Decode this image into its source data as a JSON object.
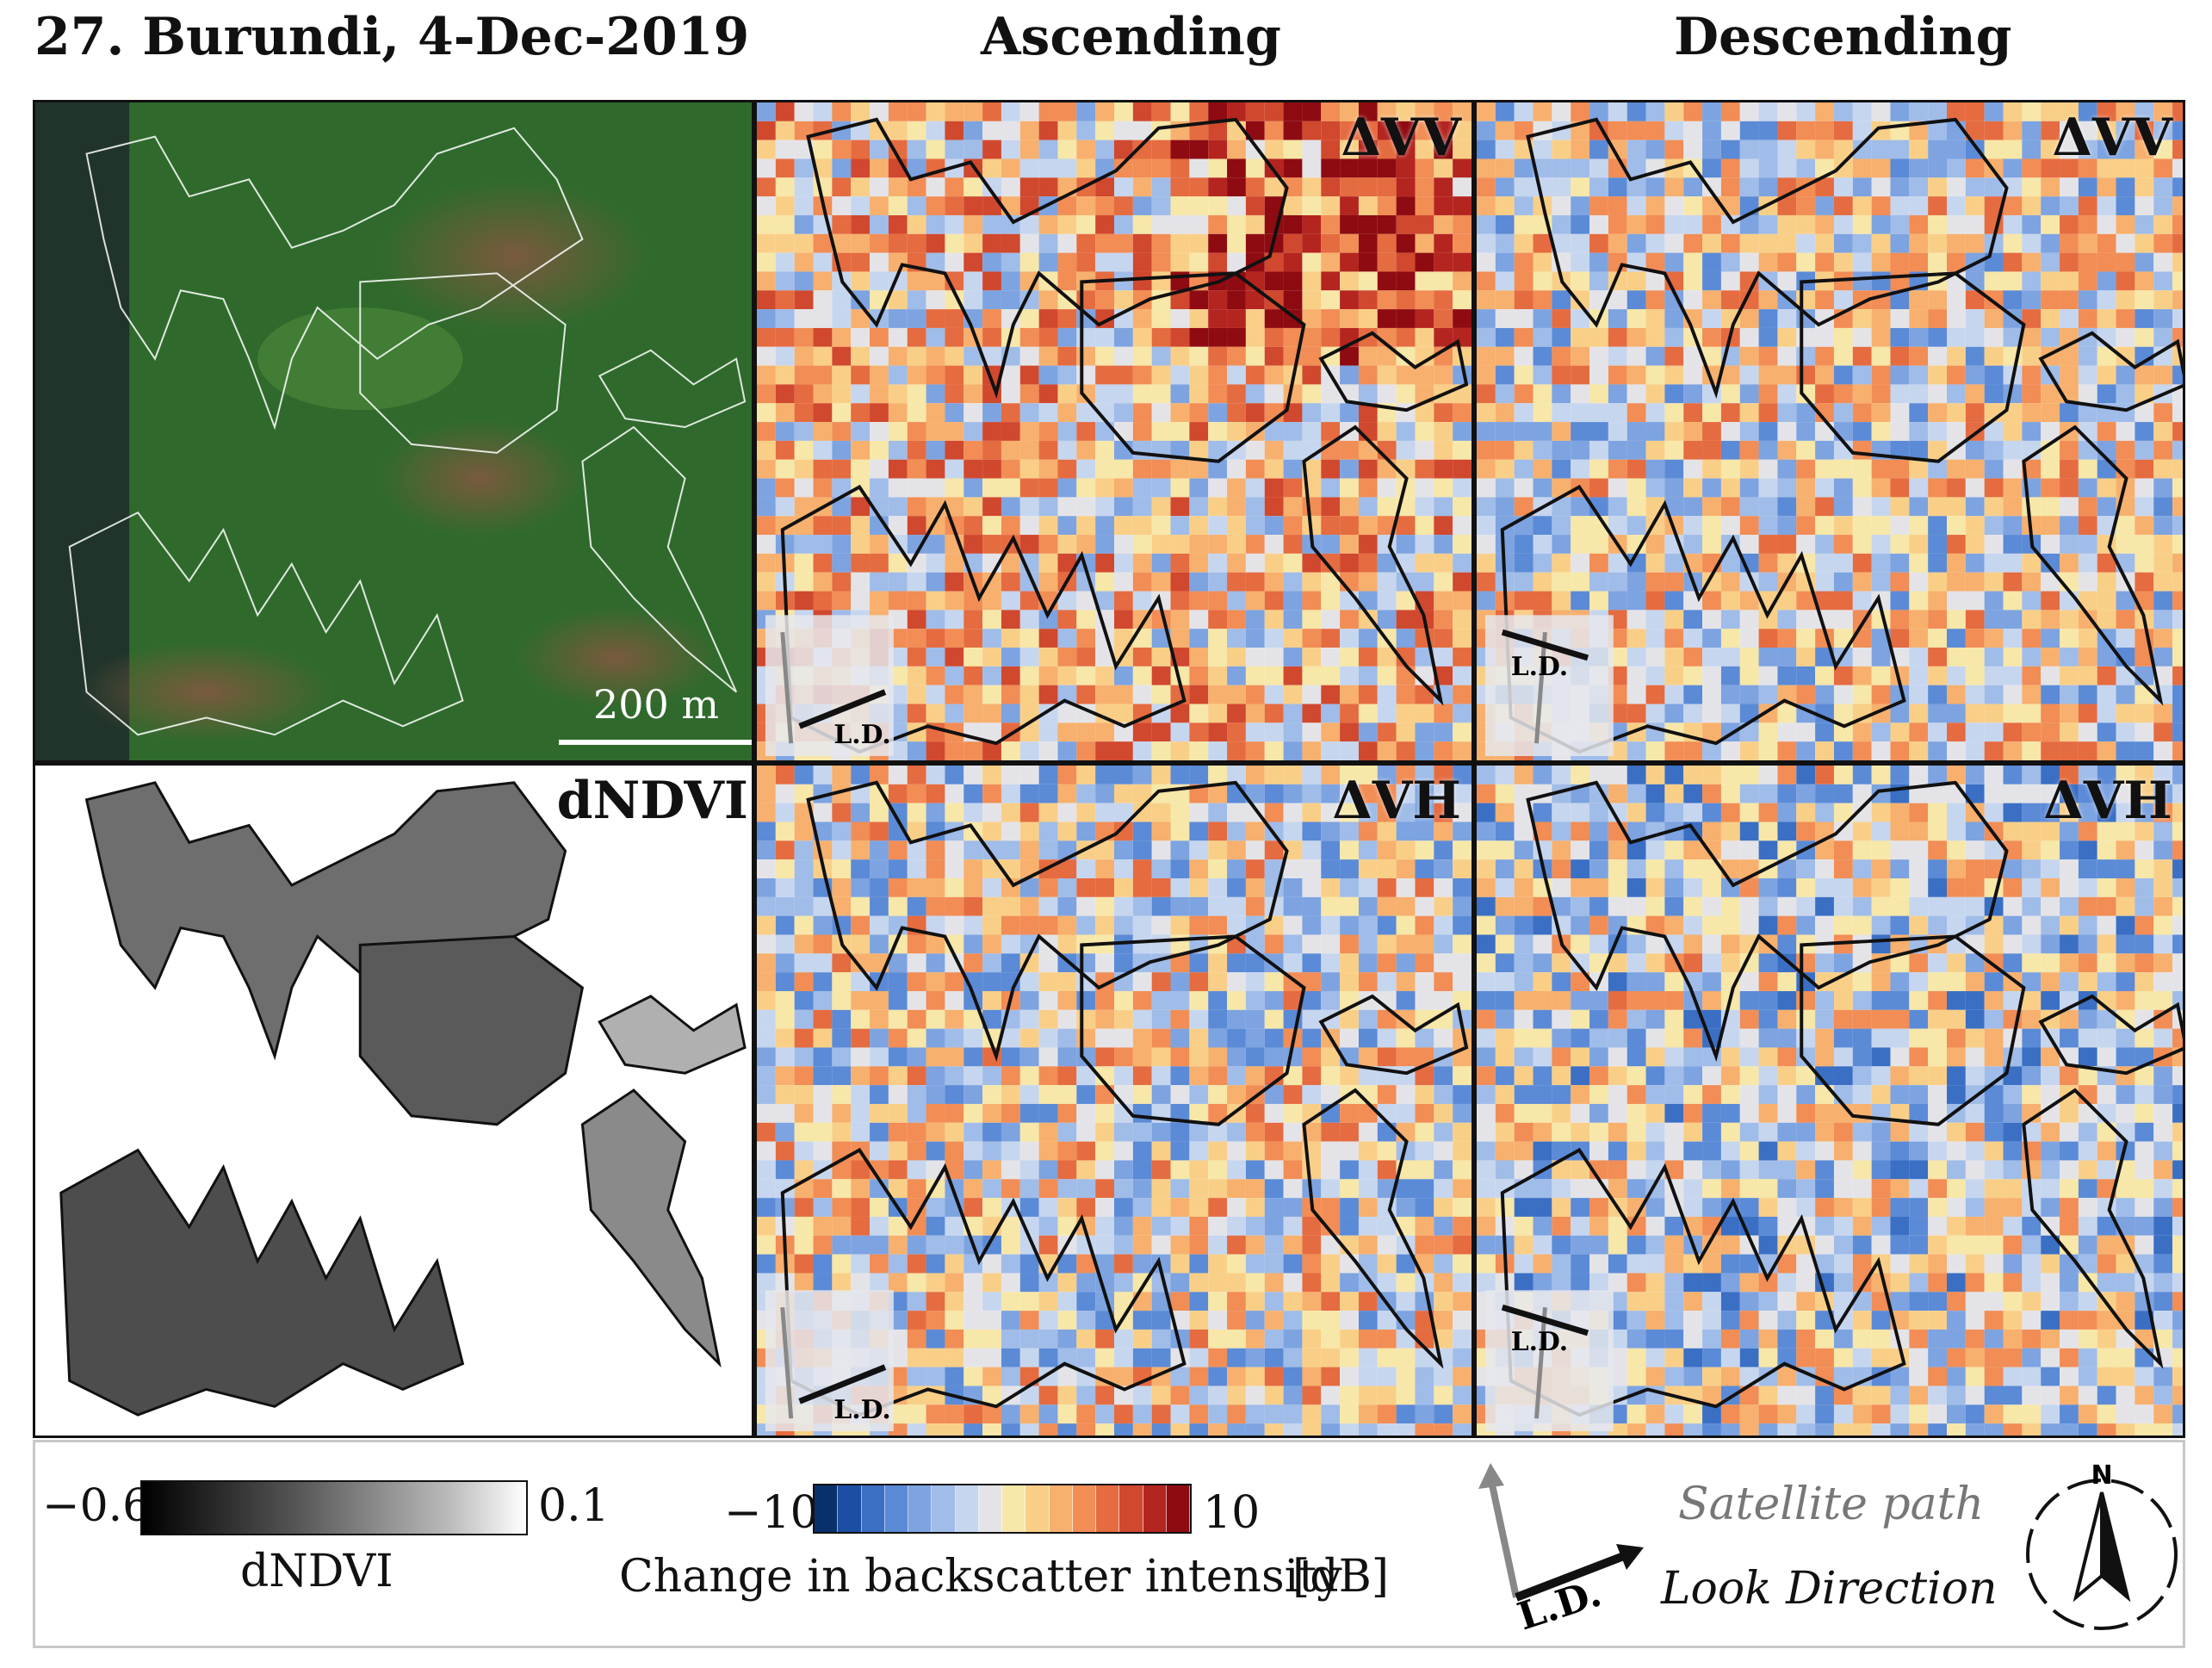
{
  "header": {
    "title": "27. Burundi, 4-Dec-2019",
    "ascending": "Ascending",
    "descending": "Descending"
  },
  "panels": {
    "satellite": {
      "scale_label": "200 m"
    },
    "asc_vv": {
      "label": "ΔVV",
      "look_direction": "L.D."
    },
    "desc_vv": {
      "label": "ΔVV",
      "look_direction": "L.D."
    },
    "dndvi": {
      "label": "dNDVI"
    },
    "asc_vh": {
      "label": "ΔVH",
      "look_direction": "L.D."
    },
    "desc_vh": {
      "label": "ΔVH",
      "look_direction": "L.D."
    }
  },
  "legend": {
    "dndvi_min": "−0.6",
    "dndvi_max": "0.1",
    "dndvi_title": "dNDVI",
    "bs_min": "−10",
    "bs_max": "10",
    "bs_title": "Change in backscatter intensity",
    "bs_unit": "[dB]",
    "satellite_path": "Satellite path",
    "look_direction": "Look Direction",
    "ld_abbrev": "L.D.",
    "north": "N"
  },
  "colors": {
    "diverging_scale": [
      "#08306b",
      "#1c4fa3",
      "#3a6fc4",
      "#5b8ad6",
      "#7da3e0",
      "#a0bce8",
      "#c6d6ef",
      "#e4e4e8",
      "#f7e7a8",
      "#f9cf88",
      "#f7b06d",
      "#f18d55",
      "#e56b40",
      "#d0482e",
      "#b42520",
      "#8e0b12"
    ],
    "satellite_base": "#2f6b2a"
  },
  "icons": [
    "compass-icon",
    "satellite-path-arrow-icon",
    "look-direction-arrow-icon"
  ]
}
